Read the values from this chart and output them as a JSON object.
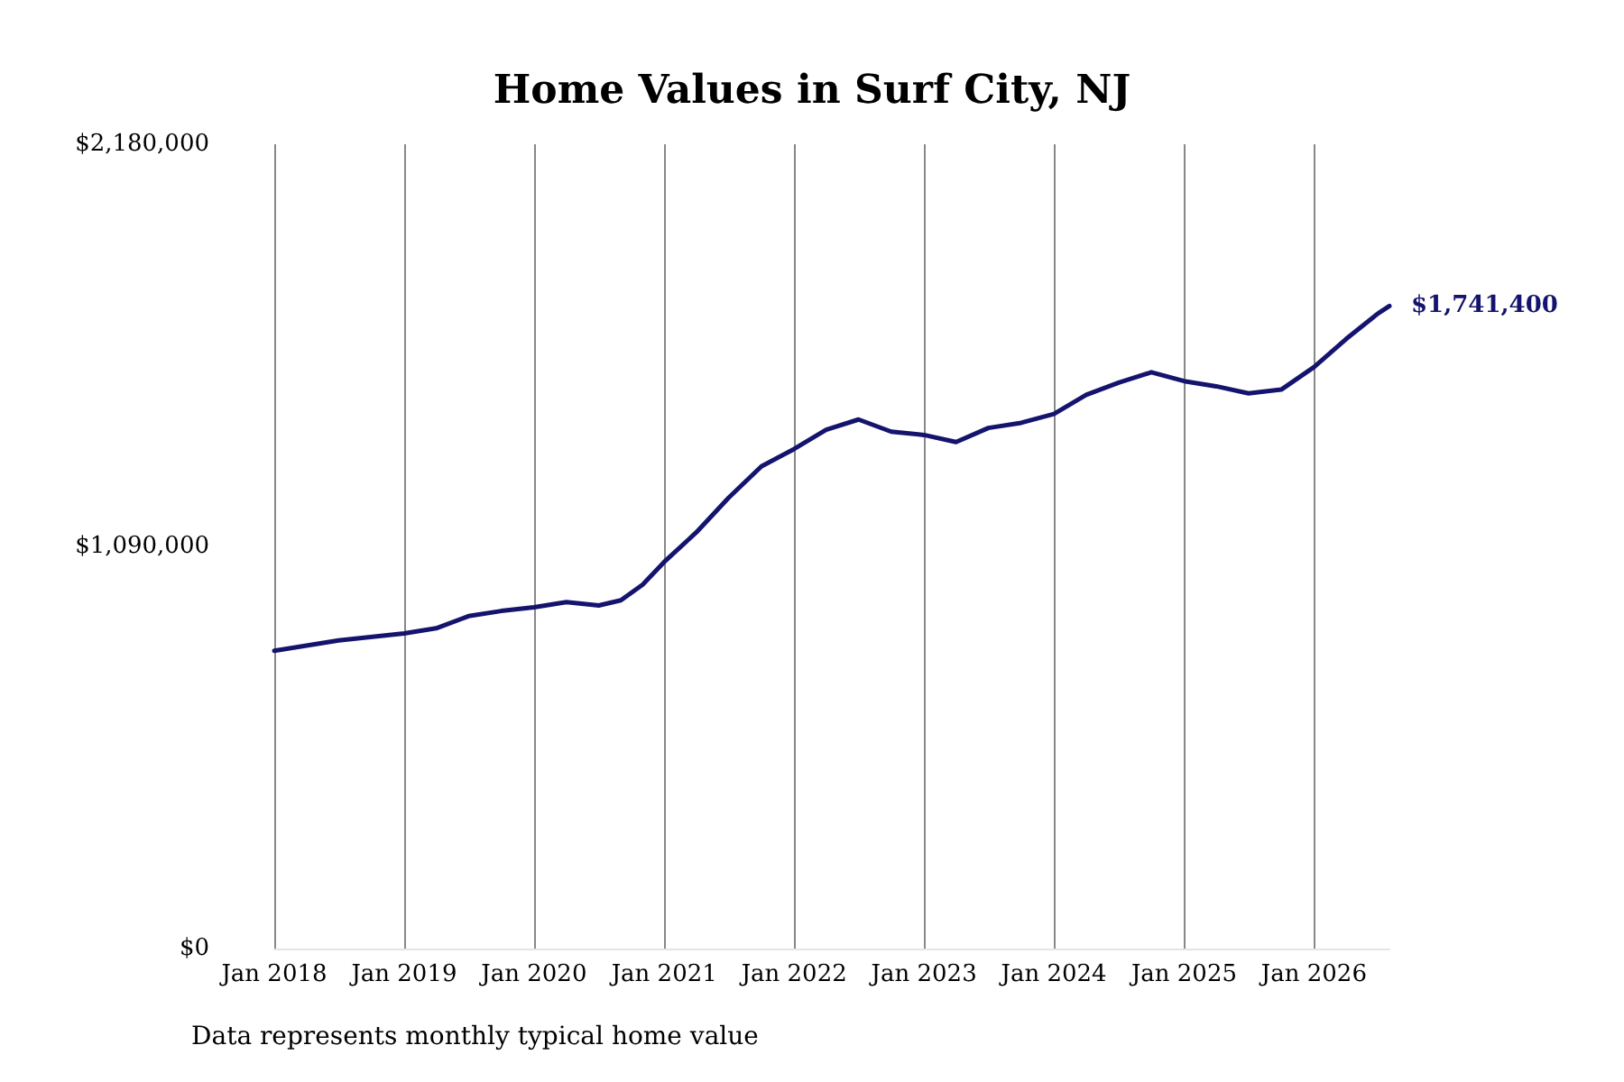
{
  "chart_data": {
    "type": "line",
    "title": "Home Values in Surf City, NJ",
    "x": [
      "2018-01",
      "2018-07",
      "2019-01",
      "2019-04",
      "2019-07",
      "2019-10",
      "2020-01",
      "2020-04",
      "2020-07",
      "2020-09",
      "2020-11",
      "2021-01",
      "2021-04",
      "2021-07",
      "2021-10",
      "2022-01",
      "2022-04",
      "2022-07",
      "2022-10",
      "2023-01",
      "2023-04",
      "2023-07",
      "2023-10",
      "2024-01",
      "2024-04",
      "2024-07",
      "2024-10",
      "2025-01",
      "2025-04",
      "2025-07",
      "2025-10",
      "2026-01",
      "2026-04",
      "2026-07",
      "2026-08"
    ],
    "series": [
      {
        "color": "#14146e",
        "values": [
          807000,
          835000,
          854000,
          868000,
          901000,
          915000,
          925000,
          939000,
          930000,
          944000,
          986000,
          1048000,
          1128000,
          1222000,
          1307000,
          1354000,
          1406000,
          1434000,
          1401000,
          1392000,
          1373000,
          1411000,
          1425000,
          1449000,
          1501000,
          1534000,
          1562000,
          1538000,
          1524000,
          1505000,
          1515000,
          1576000,
          1652000,
          1722000,
          1741400
        ],
        "value_labels": [
          null,
          null,
          null,
          null,
          null,
          null,
          null,
          null,
          null,
          null,
          null,
          null,
          null,
          null,
          null,
          null,
          null,
          null,
          null,
          null,
          null,
          null,
          null,
          null,
          null,
          null,
          null,
          null,
          null,
          null,
          null,
          null,
          null,
          null,
          "$1,741,400"
        ]
      }
    ],
    "xticks": [
      {
        "value": "2018-01",
        "label": "Jan 2018"
      },
      {
        "value": "2019-01",
        "label": "Jan 2019"
      },
      {
        "value": "2020-01",
        "label": "Jan 2020"
      },
      {
        "value": "2021-01",
        "label": "Jan 2021"
      },
      {
        "value": "2022-01",
        "label": "Jan 2022"
      },
      {
        "value": "2023-01",
        "label": "Jan 2023"
      },
      {
        "value": "2024-01",
        "label": "Jan 2024"
      },
      {
        "value": "2025-01",
        "label": "Jan 2025"
      },
      {
        "value": "2026-01",
        "label": "Jan 2026"
      }
    ],
    "xlim": [
      "2018-01",
      "2026-08"
    ],
    "ylim": [
      0,
      2180000
    ],
    "yticks": [
      {
        "value": 0,
        "label": "$0"
      },
      {
        "value": 1090000,
        "label": "$1,090,000"
      },
      {
        "value": 2180000,
        "label": "$2,180,000"
      }
    ],
    "grid": "x",
    "marker": "none",
    "line_style": "solid",
    "annotations": [
      "Data represents monthly typical home value"
    ]
  }
}
